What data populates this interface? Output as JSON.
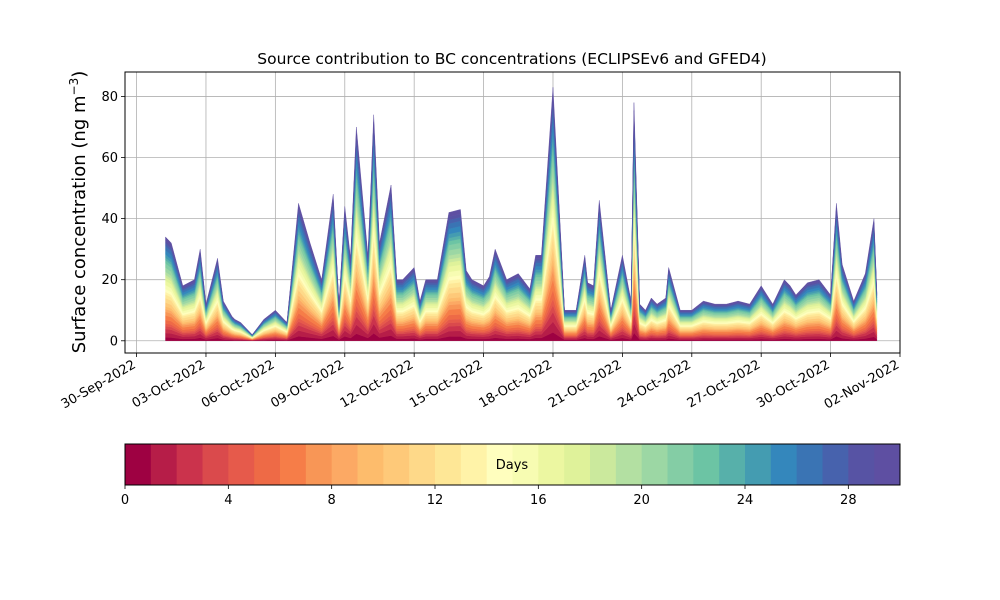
{
  "chart_data": {
    "type": "area",
    "subtype": "stacked",
    "title": "Source contribution to BC concentrations (ECLIPSEv6 and GFED4)",
    "ylabel_main": "Surface concentration (ng m",
    "ylabel_sup": "−3",
    "ylabel_close": ")",
    "xlabel": "",
    "ylim": [
      -4,
      88
    ],
    "yticks": [
      0,
      20,
      40,
      60,
      80
    ],
    "grid": true,
    "x_start": "2022-09-29T12:00",
    "x_end": "2022-11-02T00:00",
    "xticks": [
      "30-Sep-2022",
      "03-Oct-2022",
      "06-Oct-2022",
      "09-Oct-2022",
      "12-Oct-2022",
      "15-Oct-2022",
      "18-Oct-2022",
      "21-Oct-2022",
      "24-Oct-2022",
      "27-Oct-2022",
      "30-Oct-2022",
      "02-Nov-2022"
    ],
    "series_count": 30,
    "total": {
      "x": [
        "2022-10-01T06:00",
        "2022-10-01T12:00",
        "2022-10-02T00:00",
        "2022-10-02T12:00",
        "2022-10-02T18:00",
        "2022-10-03T00:00",
        "2022-10-03T12:00",
        "2022-10-03T18:00",
        "2022-10-04T03:00",
        "2022-10-04T06:00",
        "2022-10-04T12:00",
        "2022-10-05T00:00",
        "2022-10-05T12:00",
        "2022-10-06T00:00",
        "2022-10-06T12:00",
        "2022-10-07T00:00",
        "2022-10-07T12:00",
        "2022-10-08T00:00",
        "2022-10-08T12:00",
        "2022-10-08T18:00",
        "2022-10-09T00:00",
        "2022-10-09T06:00",
        "2022-10-09T12:00",
        "2022-10-10T00:00",
        "2022-10-10T03:00",
        "2022-10-10T06:00",
        "2022-10-10T12:00",
        "2022-10-11T00:00",
        "2022-10-11T06:00",
        "2022-10-11T12:00",
        "2022-10-11T21:00",
        "2022-10-12T00:00",
        "2022-10-12T06:00",
        "2022-10-12T12:00",
        "2022-10-13T00:00",
        "2022-10-13T12:00",
        "2022-10-14T00:00",
        "2022-10-14T06:00",
        "2022-10-14T12:00",
        "2022-10-15T00:00",
        "2022-10-15T06:00",
        "2022-10-15T12:00",
        "2022-10-16T00:00",
        "2022-10-16T12:00",
        "2022-10-17T00:00",
        "2022-10-17T06:00",
        "2022-10-17T12:00",
        "2022-10-18T00:00",
        "2022-10-18T12:00",
        "2022-10-19T00:00",
        "2022-10-19T09:00",
        "2022-10-19T12:00",
        "2022-10-19T18:00",
        "2022-10-20T00:00",
        "2022-10-20T12:00",
        "2022-10-21T00:00",
        "2022-10-21T09:00",
        "2022-10-21T12:00",
        "2022-10-21T18:00",
        "2022-10-22T00:00",
        "2022-10-22T06:00",
        "2022-10-22T12:00",
        "2022-10-22T21:00",
        "2022-10-23T00:00",
        "2022-10-23T12:00",
        "2022-10-24T00:00",
        "2022-10-24T12:00",
        "2022-10-25T00:00",
        "2022-10-25T12:00",
        "2022-10-26T00:00",
        "2022-10-26T12:00",
        "2022-10-27T00:00",
        "2022-10-27T12:00",
        "2022-10-28T00:00",
        "2022-10-28T06:00",
        "2022-10-28T12:00",
        "2022-10-29T00:00",
        "2022-10-29T12:00",
        "2022-10-30T00:00",
        "2022-10-30T06:00",
        "2022-10-30T12:00",
        "2022-10-31T00:00",
        "2022-10-31T12:00",
        "2022-10-31T21:00",
        "2022-11-01T00:00"
      ],
      "y": [
        34,
        32,
        18,
        20,
        30,
        12,
        27,
        13,
        8,
        7,
        6,
        2,
        7,
        10,
        6,
        45,
        32,
        20,
        48,
        12,
        44,
        27,
        70,
        28,
        50,
        74,
        32,
        51,
        20,
        20,
        23,
        24,
        13,
        20,
        20,
        42,
        43,
        23,
        20,
        18,
        21,
        30,
        20,
        22,
        17,
        28,
        28,
        83,
        10,
        10,
        28,
        19,
        18,
        46,
        10,
        28,
        13,
        78,
        12,
        10,
        14,
        12,
        14,
        24,
        10,
        10,
        13,
        12,
        12,
        13,
        12,
        18,
        12,
        20,
        18,
        15,
        19,
        20,
        15,
        45,
        25,
        13,
        22,
        40,
        16
      ]
    },
    "colorbar": {
      "label": "Days",
      "min": 0,
      "max": 30,
      "ticks": [
        0,
        4,
        8,
        12,
        16,
        20,
        24,
        28
      ],
      "colors": [
        "#9e0142",
        "#b61d48",
        "#cb334c",
        "#da4a4c",
        "#e65a4b",
        "#ee6a46",
        "#f67d48",
        "#f89656",
        "#fca964",
        "#fdbc6c",
        "#fec979",
        "#fed989",
        "#fee796",
        "#fff3a8",
        "#fffebe",
        "#f7fcb2",
        "#ecf7a1",
        "#dff29a",
        "#cbe99d",
        "#b3e0a2",
        "#9cd7a4",
        "#84cda5",
        "#6cc4a4",
        "#57b0aa",
        "#449cb1",
        "#3487bc",
        "#3a74b4",
        "#4762ad",
        "#5753a4",
        "#5e4fa2"
      ]
    }
  }
}
